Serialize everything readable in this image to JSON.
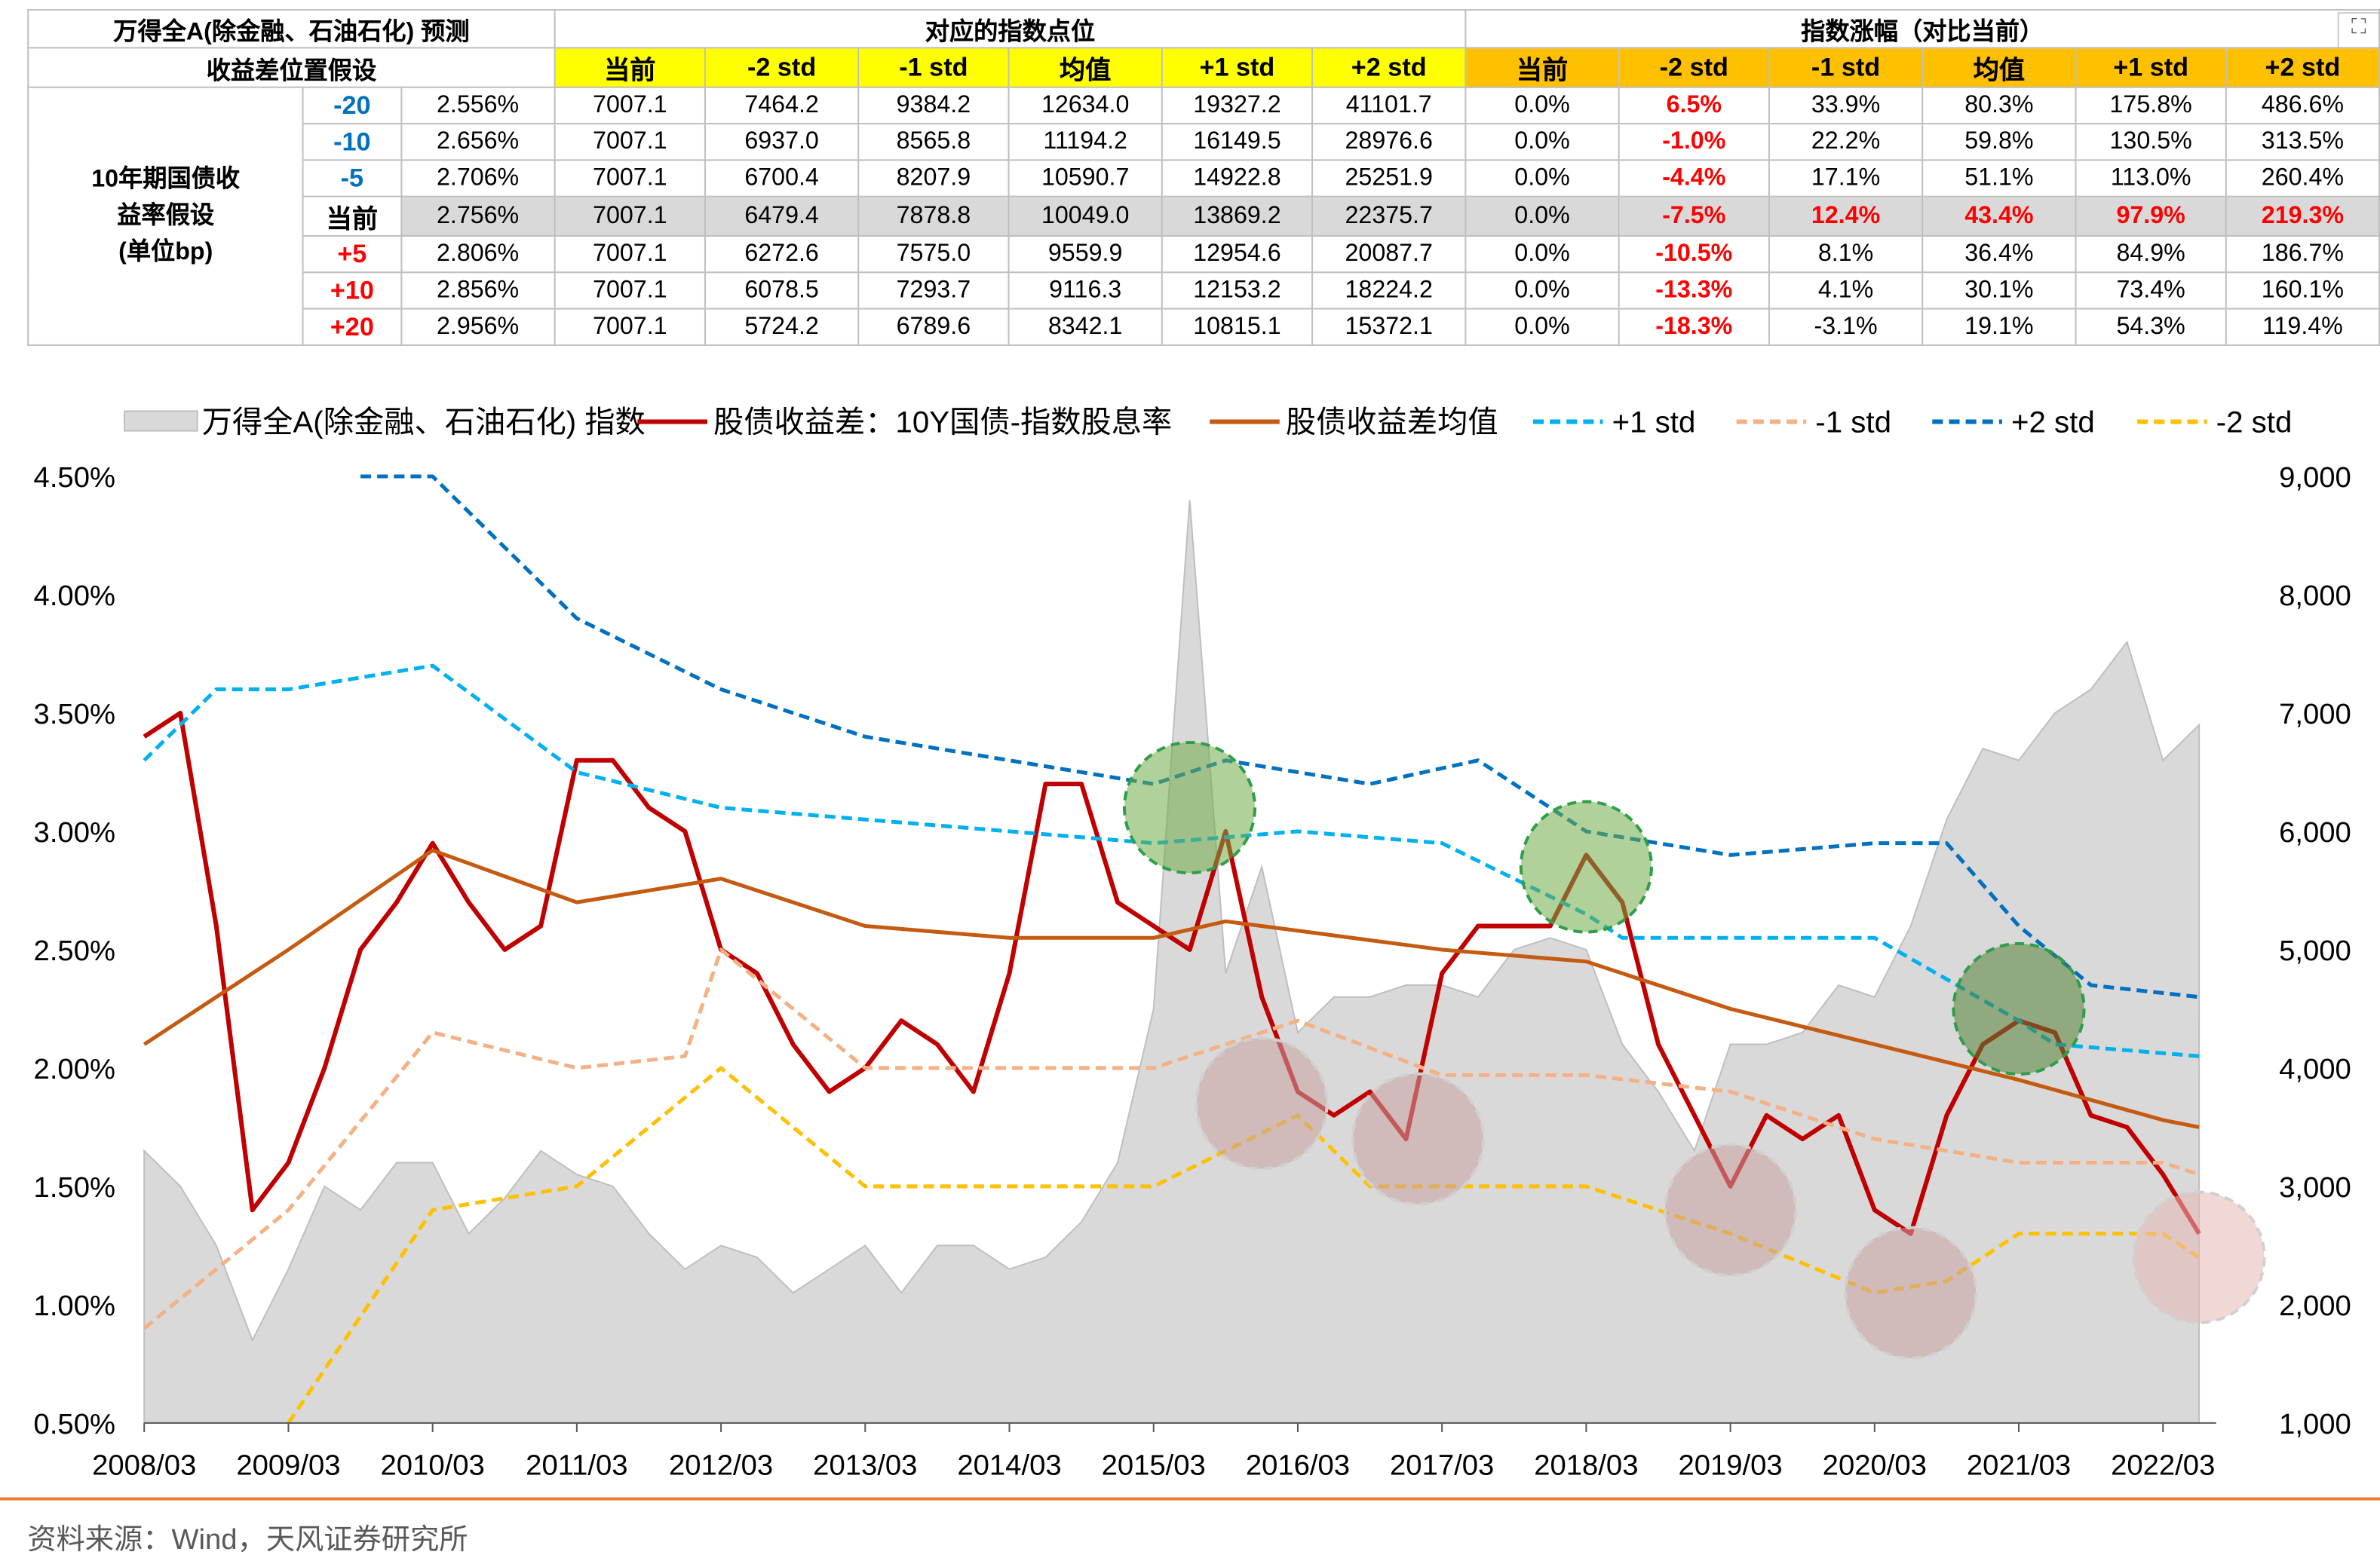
{
  "table": {
    "title": "万得全A(除金融、石油石化) 预测",
    "subtitle": "收益差位置假设",
    "group_points": "对应的指数点位",
    "group_change": "指数涨幅（对比当前）",
    "col_headers": [
      "当前",
      "-2 std",
      "-1 std",
      "均值",
      "+1 std",
      "+2 std"
    ],
    "side_label": [
      "10年期国债收",
      "益率假设",
      "(单位bp)"
    ],
    "rows": [
      {
        "bp": "-20",
        "yield": "2.556%",
        "points": [
          "7007.1",
          "7464.2",
          "9384.2",
          "12634.0",
          "19327.2",
          "41101.7"
        ],
        "change": [
          "0.0%",
          "6.5%",
          "33.9%",
          "80.3%",
          "175.8%",
          "486.6%"
        ]
      },
      {
        "bp": "-10",
        "yield": "2.656%",
        "points": [
          "7007.1",
          "6937.0",
          "8565.8",
          "11194.2",
          "16149.5",
          "28976.6"
        ],
        "change": [
          "0.0%",
          "-1.0%",
          "22.2%",
          "59.8%",
          "130.5%",
          "313.5%"
        ]
      },
      {
        "bp": "-5",
        "yield": "2.706%",
        "points": [
          "7007.1",
          "6700.4",
          "8207.9",
          "10590.7",
          "14922.8",
          "25251.9"
        ],
        "change": [
          "0.0%",
          "-4.4%",
          "17.1%",
          "51.1%",
          "113.0%",
          "260.4%"
        ]
      },
      {
        "bp": "当前",
        "yield": "2.756%",
        "points": [
          "7007.1",
          "6479.4",
          "7878.8",
          "10049.0",
          "13869.2",
          "22375.7"
        ],
        "change": [
          "0.0%",
          "-7.5%",
          "12.4%",
          "43.4%",
          "97.9%",
          "219.3%"
        ]
      },
      {
        "bp": "+5",
        "yield": "2.806%",
        "points": [
          "7007.1",
          "6272.6",
          "7575.0",
          "9559.9",
          "12954.6",
          "20087.7"
        ],
        "change": [
          "0.0%",
          "-10.5%",
          "8.1%",
          "36.4%",
          "84.9%",
          "186.7%"
        ]
      },
      {
        "bp": "+10",
        "yield": "2.856%",
        "points": [
          "7007.1",
          "6078.5",
          "7293.7",
          "9116.3",
          "12153.2",
          "18224.2"
        ],
        "change": [
          "0.0%",
          "-13.3%",
          "4.1%",
          "30.1%",
          "73.4%",
          "160.1%"
        ]
      },
      {
        "bp": "+20",
        "yield": "2.956%",
        "points": [
          "7007.1",
          "5724.2",
          "6789.6",
          "8342.1",
          "10815.1",
          "15372.1"
        ],
        "change": [
          "0.0%",
          "-18.3%",
          "-3.1%",
          "19.1%",
          "54.3%",
          "119.4%"
        ]
      }
    ],
    "colors": {
      "yellow": "#ffff00",
      "orange": "#ffc000",
      "highlight_row": "#d9d9d9",
      "negative_bp": "#0070c0",
      "positive_bp": "#ff0000"
    }
  },
  "chart_data": {
    "type": "line+area",
    "x_ticks": [
      "2008/03",
      "2009/03",
      "2010/03",
      "2011/03",
      "2012/03",
      "2013/03",
      "2014/03",
      "2015/03",
      "2016/03",
      "2017/03",
      "2018/03",
      "2019/03",
      "2020/03",
      "2021/03",
      "2022/03"
    ],
    "y_left": {
      "range": [
        0.5,
        4.5
      ],
      "ticks": [
        "0.50%",
        "1.00%",
        "1.50%",
        "2.00%",
        "2.50%",
        "3.00%",
        "3.50%",
        "4.00%",
        "4.50%"
      ]
    },
    "y_right": {
      "range": [
        1000,
        9000
      ],
      "ticks": [
        "1,000",
        "2,000",
        "3,000",
        "4,000",
        "5,000",
        "6,000",
        "7,000",
        "8,000",
        "9,000"
      ]
    },
    "grid": false,
    "legend_placement": "top",
    "area": {
      "name": "万得全A(除金融、石油石化) 指数",
      "axis": "right",
      "color": "#d9d9d9",
      "points": [
        [
          "2008/03",
          3300
        ],
        [
          "2008/06",
          3000
        ],
        [
          "2008/09",
          2500
        ],
        [
          "2008/12",
          1700
        ],
        [
          "2009/03",
          2300
        ],
        [
          "2009/06",
          3000
        ],
        [
          "2009/09",
          2800
        ],
        [
          "2009/12",
          3200
        ],
        [
          "2010/03",
          3200
        ],
        [
          "2010/06",
          2600
        ],
        [
          "2010/09",
          2900
        ],
        [
          "2010/12",
          3300
        ],
        [
          "2011/03",
          3100
        ],
        [
          "2011/06",
          3000
        ],
        [
          "2011/09",
          2600
        ],
        [
          "2011/12",
          2300
        ],
        [
          "2012/03",
          2500
        ],
        [
          "2012/06",
          2400
        ],
        [
          "2012/09",
          2100
        ],
        [
          "2012/12",
          2300
        ],
        [
          "2013/03",
          2500
        ],
        [
          "2013/06",
          2100
        ],
        [
          "2013/09",
          2500
        ],
        [
          "2013/12",
          2500
        ],
        [
          "2014/03",
          2300
        ],
        [
          "2014/06",
          2400
        ],
        [
          "2014/09",
          2700
        ],
        [
          "2014/12",
          3200
        ],
        [
          "2015/03",
          4500
        ],
        [
          "2015/06",
          8800
        ],
        [
          "2015/09",
          4800
        ],
        [
          "2015/12",
          5700
        ],
        [
          "2016/03",
          4300
        ],
        [
          "2016/06",
          4600
        ],
        [
          "2016/09",
          4600
        ],
        [
          "2016/12",
          4700
        ],
        [
          "2017/03",
          4700
        ],
        [
          "2017/06",
          4600
        ],
        [
          "2017/09",
          5000
        ],
        [
          "2017/12",
          5100
        ],
        [
          "2018/03",
          5000
        ],
        [
          "2018/06",
          4200
        ],
        [
          "2018/09",
          3800
        ],
        [
          "2018/12",
          3300
        ],
        [
          "2019/03",
          4200
        ],
        [
          "2019/06",
          4200
        ],
        [
          "2019/09",
          4300
        ],
        [
          "2019/12",
          4700
        ],
        [
          "2020/03",
          4600
        ],
        [
          "2020/06",
          5200
        ],
        [
          "2020/09",
          6100
        ],
        [
          "2020/12",
          6700
        ],
        [
          "2021/03",
          6600
        ],
        [
          "2021/06",
          7000
        ],
        [
          "2021/09",
          7200
        ],
        [
          "2021/12",
          7600
        ],
        [
          "2022/03",
          6600
        ],
        [
          "2022/06",
          6900
        ]
      ]
    },
    "series": [
      {
        "name": "股债收益差：10Y国债-指数股息率",
        "axis": "left",
        "color": "#c00000",
        "dash": false,
        "width": 3,
        "points": [
          [
            "2008/03",
            3.4
          ],
          [
            "2008/06",
            3.5
          ],
          [
            "2008/09",
            2.6
          ],
          [
            "2008/12",
            1.4
          ],
          [
            "2009/03",
            1.6
          ],
          [
            "2009/06",
            2.0
          ],
          [
            "2009/09",
            2.5
          ],
          [
            "2009/12",
            2.7
          ],
          [
            "2010/03",
            2.95
          ],
          [
            "2010/06",
            2.7
          ],
          [
            "2010/09",
            2.5
          ],
          [
            "2010/12",
            2.6
          ],
          [
            "2011/03",
            3.3
          ],
          [
            "2011/06",
            3.3
          ],
          [
            "2011/09",
            3.1
          ],
          [
            "2011/12",
            3.0
          ],
          [
            "2012/03",
            2.5
          ],
          [
            "2012/06",
            2.4
          ],
          [
            "2012/09",
            2.1
          ],
          [
            "2012/12",
            1.9
          ],
          [
            "2013/03",
            2.0
          ],
          [
            "2013/06",
            2.2
          ],
          [
            "2013/09",
            2.1
          ],
          [
            "2013/12",
            1.9
          ],
          [
            "2014/03",
            2.4
          ],
          [
            "2014/06",
            3.2
          ],
          [
            "2014/09",
            3.2
          ],
          [
            "2014/12",
            2.7
          ],
          [
            "2015/03",
            2.6
          ],
          [
            "2015/06",
            2.5
          ],
          [
            "2015/09",
            3.0
          ],
          [
            "2015/12",
            2.3
          ],
          [
            "2016/03",
            1.9
          ],
          [
            "2016/06",
            1.8
          ],
          [
            "2016/09",
            1.9
          ],
          [
            "2016/12",
            1.7
          ],
          [
            "2017/03",
            2.4
          ],
          [
            "2017/06",
            2.6
          ],
          [
            "2017/09",
            2.6
          ],
          [
            "2017/12",
            2.6
          ],
          [
            "2018/03",
            2.9
          ],
          [
            "2018/06",
            2.7
          ],
          [
            "2018/09",
            2.1
          ],
          [
            "2018/12",
            1.8
          ],
          [
            "2019/03",
            1.5
          ],
          [
            "2019/06",
            1.8
          ],
          [
            "2019/09",
            1.7
          ],
          [
            "2019/12",
            1.8
          ],
          [
            "2020/03",
            1.4
          ],
          [
            "2020/06",
            1.3
          ],
          [
            "2020/09",
            1.8
          ],
          [
            "2020/12",
            2.1
          ],
          [
            "2021/03",
            2.2
          ],
          [
            "2021/06",
            2.15
          ],
          [
            "2021/09",
            1.8
          ],
          [
            "2021/12",
            1.75
          ],
          [
            "2022/03",
            1.55
          ],
          [
            "2022/06",
            1.3
          ]
        ]
      },
      {
        "name": "股债收益差均值",
        "axis": "left",
        "color": "#c55a11",
        "dash": false,
        "width": 2.5,
        "points": [
          [
            "2008/03",
            2.1
          ],
          [
            "2009/03",
            2.5
          ],
          [
            "2010/03",
            2.92
          ],
          [
            "2011/03",
            2.7
          ],
          [
            "2012/03",
            2.8
          ],
          [
            "2013/03",
            2.6
          ],
          [
            "2014/03",
            2.55
          ],
          [
            "2015/03",
            2.55
          ],
          [
            "2015/09",
            2.62
          ],
          [
            "2016/03",
            2.58
          ],
          [
            "2017/03",
            2.5
          ],
          [
            "2018/03",
            2.45
          ],
          [
            "2019/03",
            2.25
          ],
          [
            "2020/03",
            2.1
          ],
          [
            "2021/03",
            1.95
          ],
          [
            "2022/03",
            1.78
          ],
          [
            "2022/06",
            1.75
          ]
        ]
      },
      {
        "name": "+1 std",
        "axis": "left",
        "color": "#00b0f0",
        "dash": true,
        "width": 2.5,
        "points": [
          [
            "2008/03",
            3.3
          ],
          [
            "2008/09",
            3.6
          ],
          [
            "2009/03",
            3.6
          ],
          [
            "2010/03",
            3.7
          ],
          [
            "2011/03",
            3.25
          ],
          [
            "2012/03",
            3.1
          ],
          [
            "2013/03",
            3.05
          ],
          [
            "2014/03",
            3.0
          ],
          [
            "2015/03",
            2.95
          ],
          [
            "2016/03",
            3.0
          ],
          [
            "2017/03",
            2.95
          ],
          [
            "2018/03",
            2.65
          ],
          [
            "2018/06",
            2.55
          ],
          [
            "2019/03",
            2.55
          ],
          [
            "2020/03",
            2.55
          ],
          [
            "2021/03",
            2.2
          ],
          [
            "2021/06",
            2.1
          ],
          [
            "2022/06",
            2.05
          ]
        ]
      },
      {
        "name": "-1 std",
        "axis": "left",
        "color": "#f4b183",
        "dash": true,
        "width": 2.5,
        "points": [
          [
            "2008/03",
            0.9
          ],
          [
            "2009/03",
            1.4
          ],
          [
            "2010/03",
            2.15
          ],
          [
            "2011/03",
            2.0
          ],
          [
            "2011/12",
            2.05
          ],
          [
            "2012/03",
            2.5
          ],
          [
            "2013/03",
            2.0
          ],
          [
            "2015/03",
            2.0
          ],
          [
            "2016/03",
            2.2
          ],
          [
            "2017/03",
            1.97
          ],
          [
            "2018/03",
            1.97
          ],
          [
            "2019/03",
            1.9
          ],
          [
            "2020/03",
            1.7
          ],
          [
            "2021/03",
            1.6
          ],
          [
            "2022/03",
            1.6
          ],
          [
            "2022/06",
            1.55
          ]
        ]
      },
      {
        "name": "+2 std",
        "axis": "left",
        "color": "#0070c0",
        "dash": true,
        "width": 2.5,
        "points": [
          [
            "2009/09",
            4.5
          ],
          [
            "2010/03",
            4.5
          ],
          [
            "2011/03",
            3.9
          ],
          [
            "2012/03",
            3.6
          ],
          [
            "2013/03",
            3.4
          ],
          [
            "2014/03",
            3.3
          ],
          [
            "2015/03",
            3.2
          ],
          [
            "2015/09",
            3.3
          ],
          [
            "2016/09",
            3.2
          ],
          [
            "2017/06",
            3.3
          ],
          [
            "2018/03",
            3.0
          ],
          [
            "2019/03",
            2.9
          ],
          [
            "2020/03",
            2.95
          ],
          [
            "2020/09",
            2.95
          ],
          [
            "2021/03",
            2.6
          ],
          [
            "2021/09",
            2.35
          ],
          [
            "2022/06",
            2.3
          ]
        ]
      },
      {
        "name": "-2 std",
        "axis": "left",
        "color": "#ffc000",
        "dash": true,
        "width": 2.5,
        "points": [
          [
            "2009/03",
            0.5
          ],
          [
            "2010/03",
            1.4
          ],
          [
            "2011/03",
            1.5
          ],
          [
            "2012/03",
            2.0
          ],
          [
            "2013/03",
            1.5
          ],
          [
            "2014/03",
            1.5
          ],
          [
            "2015/03",
            1.5
          ],
          [
            "2016/03",
            1.8
          ],
          [
            "2016/09",
            1.5
          ],
          [
            "2017/03",
            1.5
          ],
          [
            "2018/03",
            1.5
          ],
          [
            "2019/03",
            1.3
          ],
          [
            "2020/03",
            1.05
          ],
          [
            "2020/09",
            1.1
          ],
          [
            "2021/03",
            1.3
          ],
          [
            "2022/03",
            1.3
          ],
          [
            "2022/06",
            1.2
          ]
        ]
      }
    ],
    "highlights": [
      {
        "date": "2015/06",
        "value": 3.1,
        "color": "#70ad47"
      },
      {
        "date": "2018/03",
        "value": 2.85,
        "color": "#70ad47"
      },
      {
        "date": "2021/03",
        "value": 2.25,
        "color": "#548235"
      },
      {
        "date": "2015/12",
        "value": 1.85,
        "color": "#c9a0a0"
      },
      {
        "date": "2017/01",
        "value": 1.7,
        "color": "#c9a0a0"
      },
      {
        "date": "2019/03",
        "value": 1.4,
        "color": "#c9a0a0"
      },
      {
        "date": "2020/06",
        "value": 1.05,
        "color": "#c9a0a0"
      },
      {
        "date": "2022/06",
        "value": 1.2,
        "color": "#e6b8b7"
      }
    ]
  },
  "source": "资料来源：Wind，天风证券研究所"
}
